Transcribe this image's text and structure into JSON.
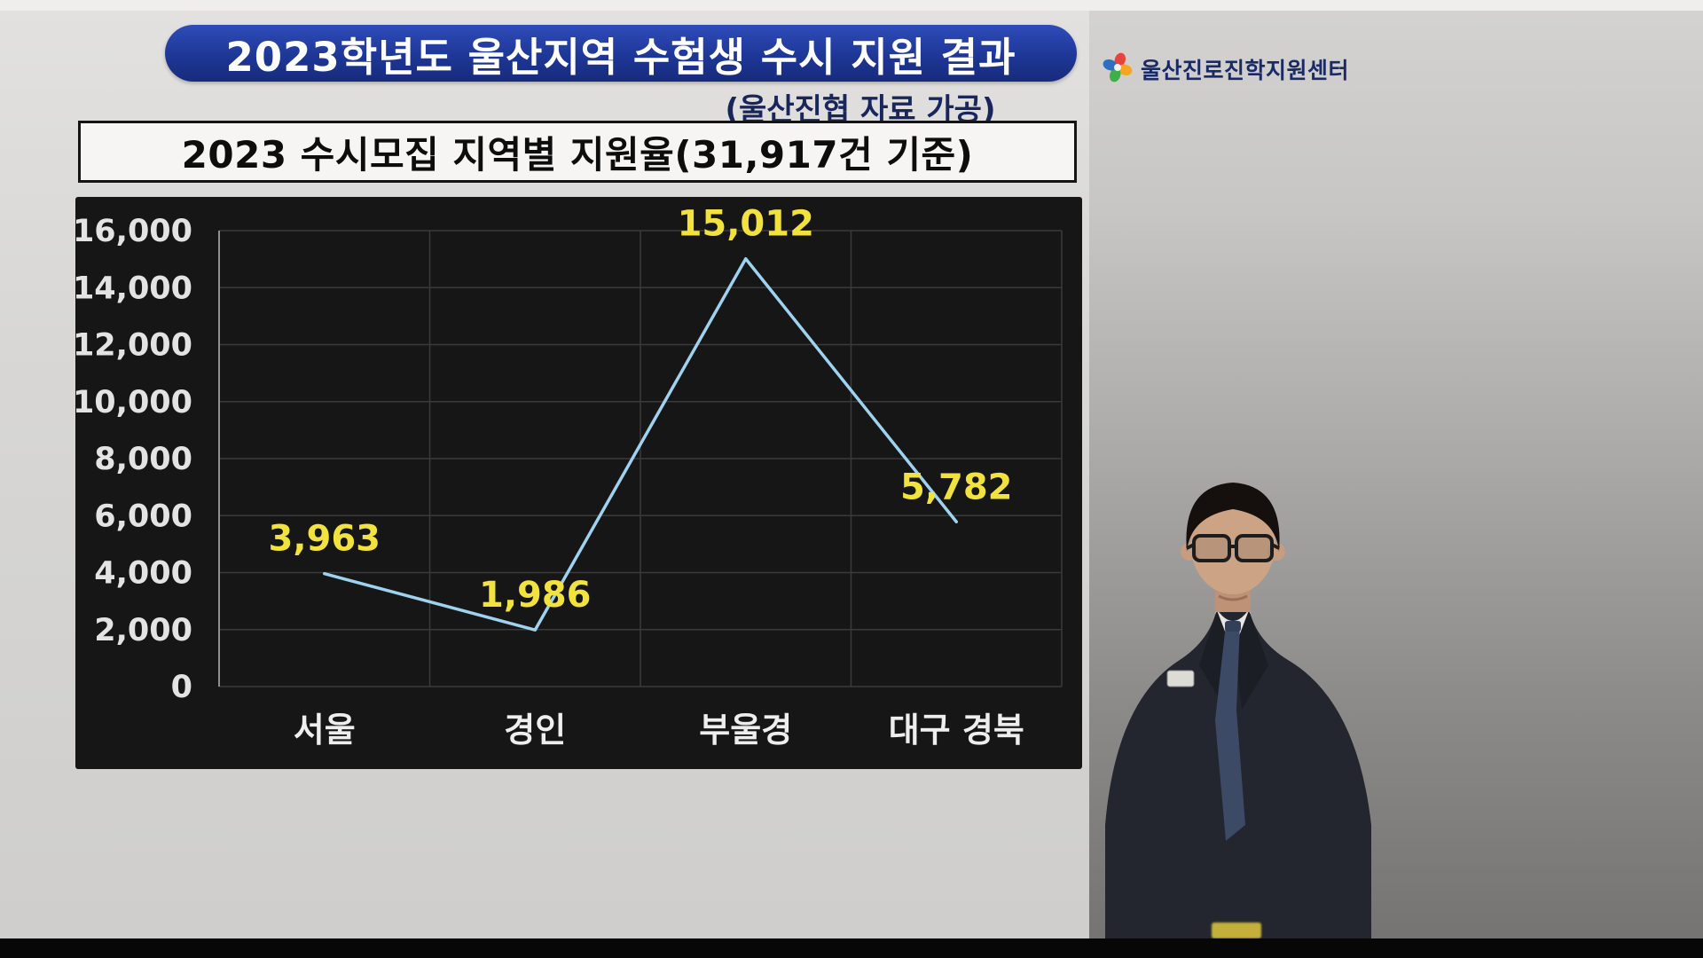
{
  "header": {
    "title": "2023학년도 울산지역 수험생 수시 지원 결과",
    "subtitle": "(울산진협 자료 가공)",
    "logo": {
      "text": "울산진로진학지원센터"
    }
  },
  "section": {
    "title": "2023 수시모집 지역별 지원율(31,917건 기준)"
  },
  "chart_data": {
    "type": "line",
    "title": "2023 수시모집 지역별 지원율(31,917건 기준)",
    "categories": [
      "서울",
      "경인",
      "부울경",
      "대구 경북"
    ],
    "values": [
      3963,
      1986,
      15012,
      5782
    ],
    "value_labels": [
      "3,963",
      "1,986",
      "15,012",
      "5,782"
    ],
    "total_label": "31,917건 기준",
    "ylim": [
      0,
      16000
    ],
    "ytick_interval": 2000,
    "ytick_labels": [
      "0",
      "2,000",
      "4,000",
      "6,000",
      "8,000",
      "10,000",
      "12,000",
      "14,000",
      "16,000"
    ],
    "grid": true,
    "legend": false,
    "xlabel": "",
    "ylabel": "",
    "colors": {
      "background": "#161616",
      "line": "#9fd2ee",
      "grid": "#3a3a3a",
      "axis": "#8f8f8f",
      "tick_text": "#e3e3e3",
      "data_label": "#f2e23e"
    }
  }
}
